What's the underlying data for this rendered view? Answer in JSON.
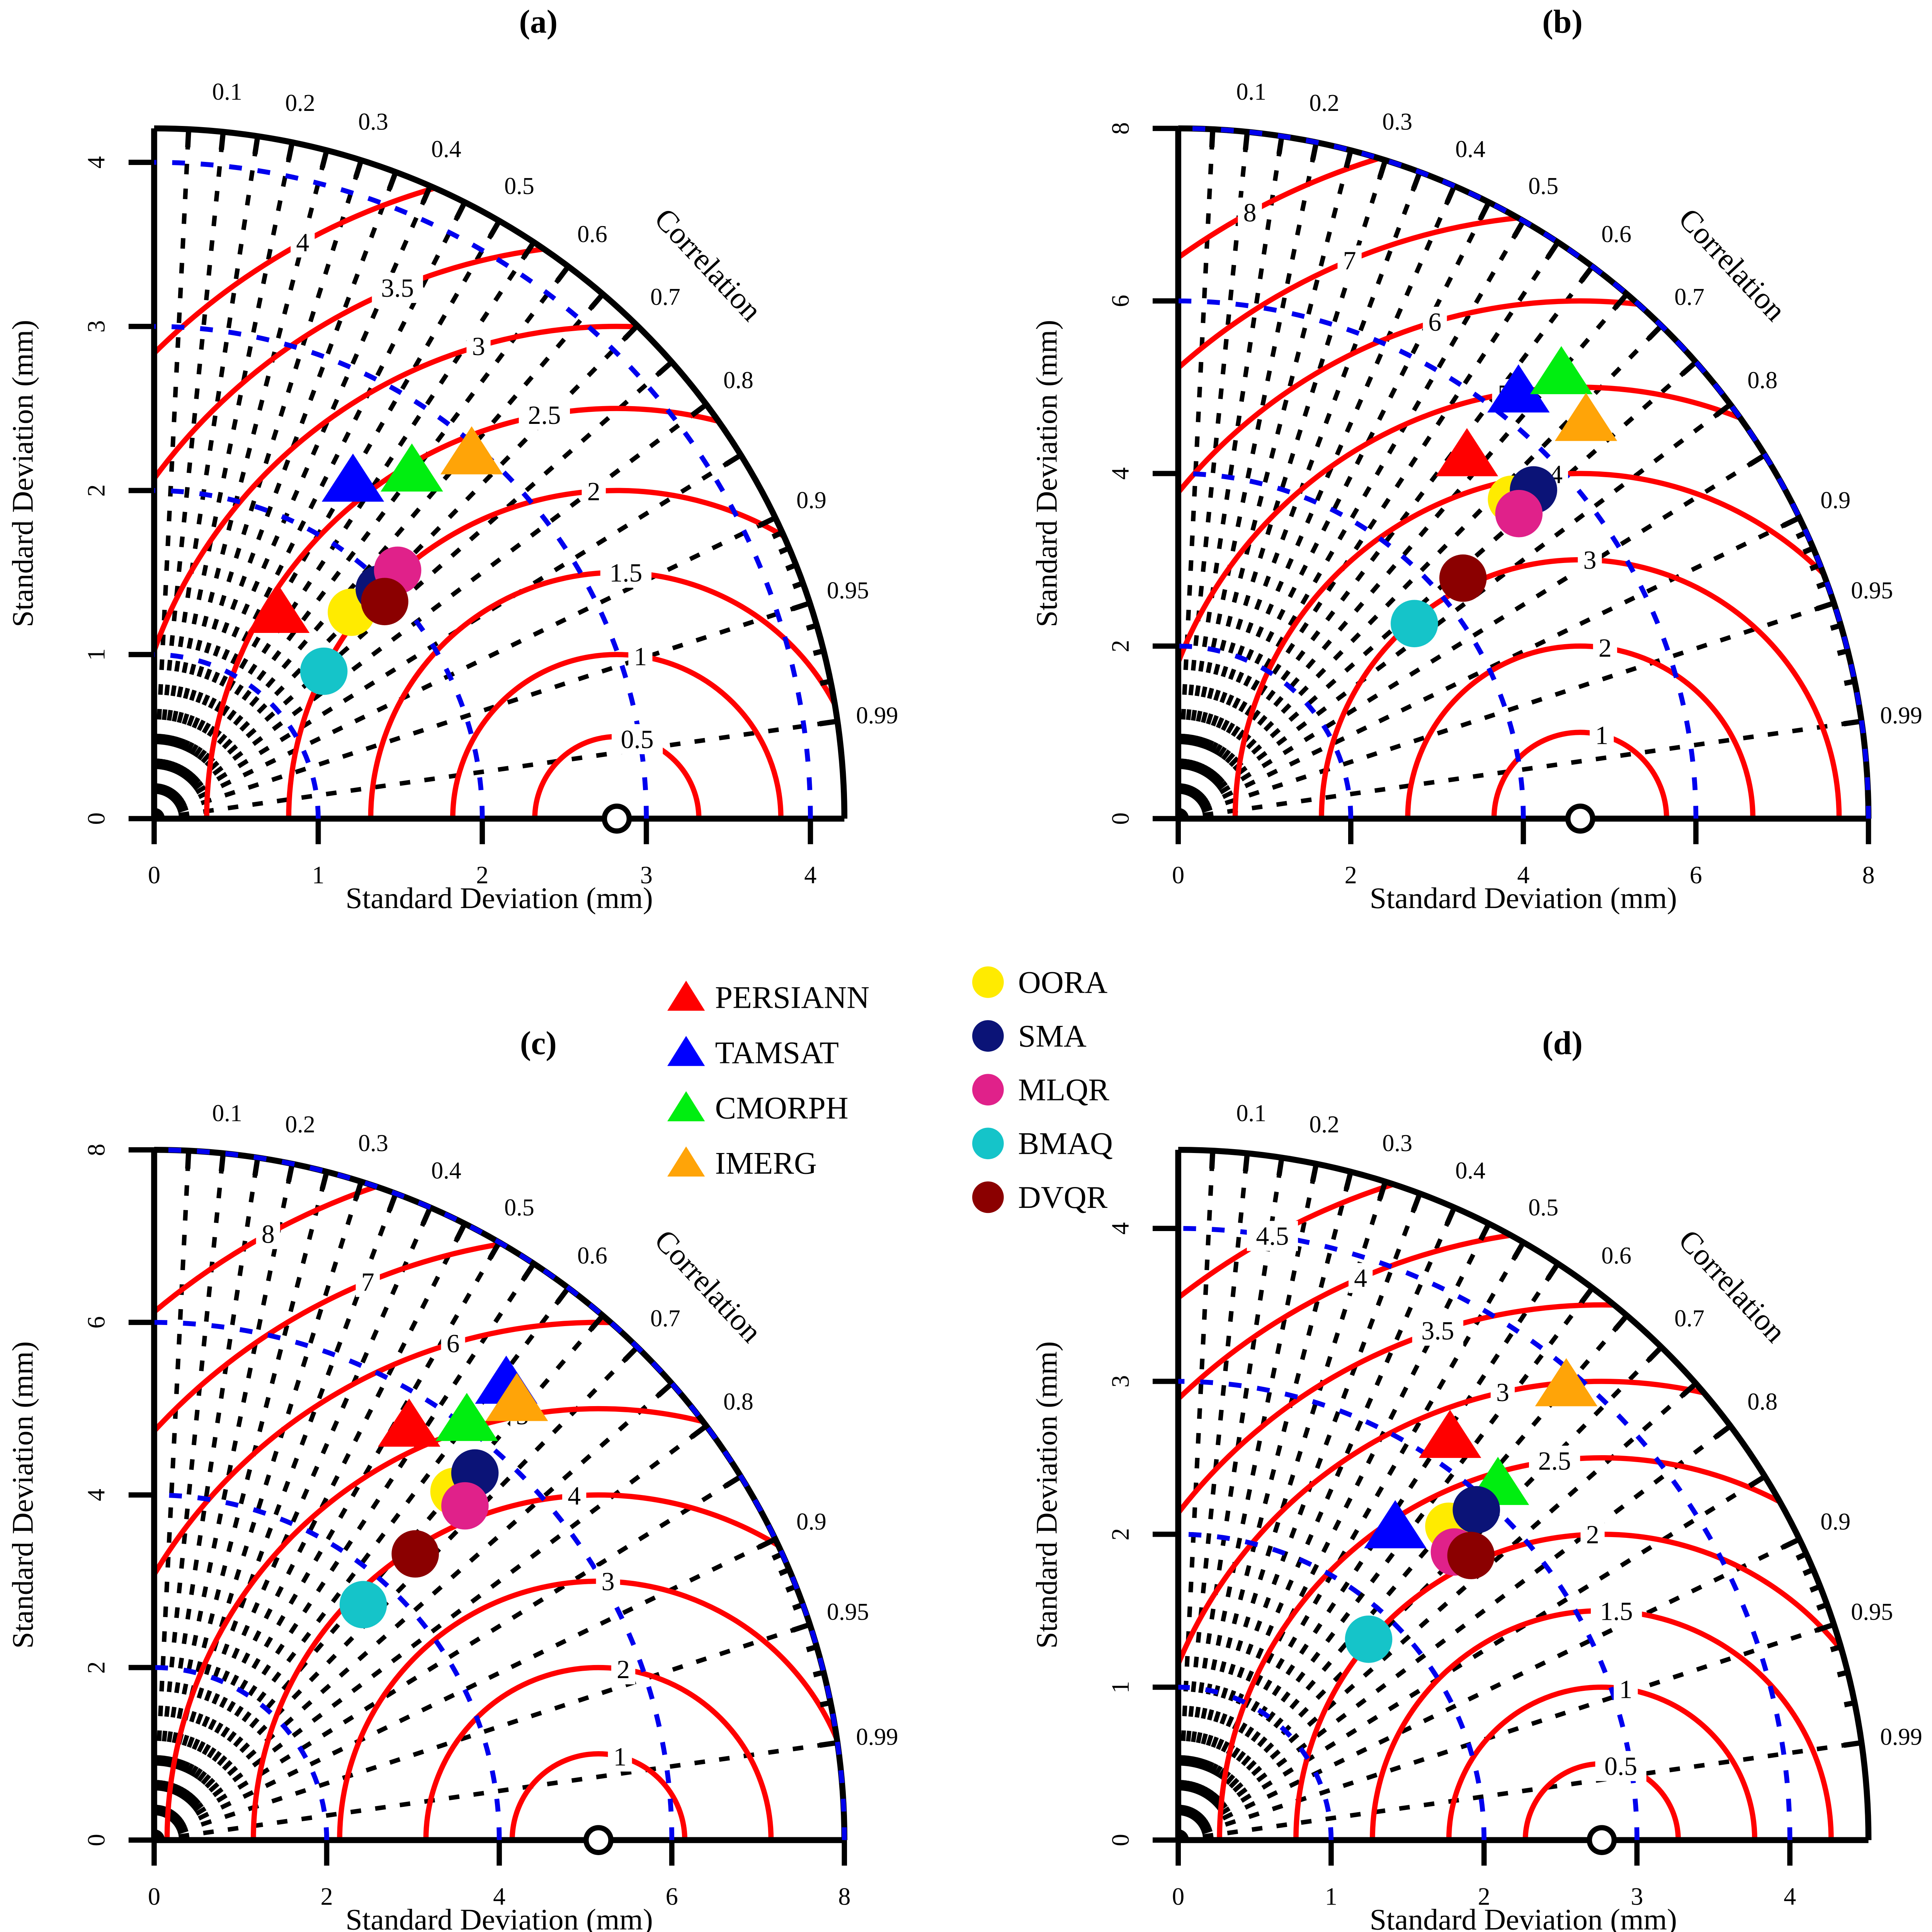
{
  "figure": {
    "background": "#FFFFFF",
    "axis_title_x": "Standard Deviation (mm)",
    "axis_title_y": "Standard Deviation (mm)",
    "correlation_title": "Correlation",
    "colors": {
      "rms_contours": "#FF0000",
      "sd_circles": "#0000EE",
      "correlation_rays": "#000000",
      "axis": "#000000"
    }
  },
  "series": [
    {
      "name": "PERSIANN",
      "marker": "triangle",
      "color": "#FF0000"
    },
    {
      "name": "TAMSAT",
      "marker": "triangle",
      "color": "#0000FF"
    },
    {
      "name": "CMORPH",
      "marker": "triangle",
      "color": "#00EE10"
    },
    {
      "name": "IMERG",
      "marker": "triangle",
      "color": "#FFA408"
    },
    {
      "name": "OORA",
      "marker": "circle",
      "color": "#FFEB00"
    },
    {
      "name": "SMA",
      "marker": "circle",
      "color": "#0B1377"
    },
    {
      "name": "MLQR",
      "marker": "circle",
      "color": "#E0218A"
    },
    {
      "name": "BMAQ",
      "marker": "circle",
      "color": "#15C4C9"
    },
    {
      "name": "DVQR",
      "marker": "circle",
      "color": "#8B0000"
    }
  ],
  "legend": {
    "left_column": [
      "PERSIANN",
      "TAMSAT",
      "CMORPH",
      "IMERG"
    ],
    "right_column": [
      "OORA",
      "SMA",
      "MLQR",
      "BMAQ",
      "DVQR"
    ]
  },
  "correlation": {
    "rays": [
      0.05,
      0.1,
      0.15,
      0.2,
      0.25,
      0.3,
      0.35,
      0.4,
      0.45,
      0.5,
      0.55,
      0.6,
      0.65,
      0.7,
      0.75,
      0.8,
      0.85,
      0.9,
      0.95,
      0.99
    ],
    "minor_ticks": [
      0.91,
      0.92,
      0.93,
      0.94,
      0.96,
      0.97,
      0.98
    ],
    "labels": [
      0.1,
      0.2,
      0.3,
      0.4,
      0.5,
      0.6,
      0.7,
      0.8,
      0.9,
      0.95,
      0.99
    ]
  },
  "chart_data": [
    {
      "id": "a",
      "label": "(a)",
      "type": "taylor",
      "axis_max": 4.207,
      "axis_ticks": [
        0,
        1,
        2,
        3,
        4
      ],
      "sd_circles": [
        1,
        2,
        3,
        4
      ],
      "rms_contours": [
        0.5,
        1,
        1.5,
        2,
        2.5,
        3,
        3.5,
        4
      ],
      "reference_sd": 2.82,
      "xlabel": "Standard Deviation (mm)",
      "ylabel": "Standard Deviation (mm)",
      "points": [
        {
          "name": "PERSIANN",
          "sd": 1.47,
          "corr": 0.515
        },
        {
          "name": "TAMSAT",
          "sd": 2.39,
          "corr": 0.507
        },
        {
          "name": "CMORPH",
          "sd": 2.64,
          "corr": 0.595
        },
        {
          "name": "IMERG",
          "sd": 2.95,
          "corr": 0.656
        },
        {
          "name": "OORA",
          "sd": 1.74,
          "corr": 0.691
        },
        {
          "name": "SMA",
          "sd": 1.96,
          "corr": 0.7
        },
        {
          "name": "MLQR",
          "sd": 2.12,
          "corr": 0.7
        },
        {
          "name": "BMAQ",
          "sd": 1.37,
          "corr": 0.755
        },
        {
          "name": "DVQR",
          "sd": 1.93,
          "corr": 0.728
        }
      ]
    },
    {
      "id": "b",
      "label": "(b)",
      "type": "taylor",
      "axis_max": 8.0,
      "axis_ticks": [
        0,
        2,
        4,
        6,
        8
      ],
      "sd_circles": [
        2,
        4,
        6,
        8
      ],
      "rms_contours": [
        1,
        2,
        3,
        4,
        5,
        6,
        7,
        8
      ],
      "reference_sd": 4.66,
      "xlabel": "Standard Deviation (mm)",
      "ylabel": "Standard Deviation (mm)",
      "points": [
        {
          "name": "PERSIANN",
          "sd": 5.38,
          "corr": 0.622
        },
        {
          "name": "TAMSAT",
          "sd": 6.33,
          "corr": 0.623
        },
        {
          "name": "CMORPH",
          "sd": 6.81,
          "corr": 0.652
        },
        {
          "name": "IMERG",
          "sd": 6.61,
          "corr": 0.715
        },
        {
          "name": "OORA",
          "sd": 5.35,
          "corr": 0.722
        },
        {
          "name": "SMA",
          "sd": 5.61,
          "corr": 0.734
        },
        {
          "name": "MLQR",
          "sd": 5.3,
          "corr": 0.745
        },
        {
          "name": "BMAQ",
          "sd": 3.55,
          "corr": 0.771
        },
        {
          "name": "DVQR",
          "sd": 4.32,
          "corr": 0.764
        }
      ]
    },
    {
      "id": "c",
      "label": "(c)",
      "type": "taylor",
      "axis_max": 8.0,
      "axis_ticks": [
        0,
        2,
        4,
        6,
        8
      ],
      "sd_circles": [
        2,
        4,
        6,
        8
      ],
      "rms_contours": [
        1,
        2,
        3,
        4,
        5,
        6,
        7,
        8
      ],
      "reference_sd": 5.15,
      "xlabel": "Standard Deviation (mm)",
      "ylabel": "Standard Deviation (mm)",
      "points": [
        {
          "name": "PERSIANN",
          "sd": 5.64,
          "corr": 0.524
        },
        {
          "name": "TAMSAT",
          "sd": 6.69,
          "corr": 0.61
        },
        {
          "name": "CMORPH",
          "sd": 6.07,
          "corr": 0.597
        },
        {
          "name": "IMERG",
          "sd": 6.61,
          "corr": 0.636
        },
        {
          "name": "OORA",
          "sd": 5.33,
          "corr": 0.652
        },
        {
          "name": "SMA",
          "sd": 5.65,
          "corr": 0.658
        },
        {
          "name": "MLQR",
          "sd": 5.29,
          "corr": 0.681
        },
        {
          "name": "BMAQ",
          "sd": 3.65,
          "corr": 0.664
        },
        {
          "name": "DVQR",
          "sd": 4.49,
          "corr": 0.674
        }
      ]
    },
    {
      "id": "d",
      "label": "(d)",
      "type": "taylor",
      "axis_max": 4.514,
      "axis_ticks": [
        0,
        1,
        2,
        3,
        4
      ],
      "sd_circles": [
        1,
        2,
        3,
        4
      ],
      "rms_contours": [
        0.5,
        1,
        1.5,
        2,
        2.5,
        3,
        3.5,
        4,
        4.5
      ],
      "reference_sd": 2.77,
      "xlabel": "Standard Deviation (mm)",
      "ylabel": "Standard Deviation (mm)",
      "points": [
        {
          "name": "PERSIANN",
          "sd": 3.18,
          "corr": 0.559
        },
        {
          "name": "TAMSAT",
          "sd": 2.49,
          "corr": 0.57
        },
        {
          "name": "CMORPH",
          "sd": 3.13,
          "corr": 0.668
        },
        {
          "name": "IMERG",
          "sd": 3.91,
          "corr": 0.649
        },
        {
          "name": "OORA",
          "sd": 2.71,
          "corr": 0.653
        },
        {
          "name": "SMA",
          "sd": 2.91,
          "corr": 0.67
        },
        {
          "name": "MLQR",
          "sd": 2.61,
          "corr": 0.692
        },
        {
          "name": "BMAQ",
          "sd": 1.81,
          "corr": 0.688
        },
        {
          "name": "DVQR",
          "sd": 2.67,
          "corr": 0.717
        }
      ]
    }
  ]
}
